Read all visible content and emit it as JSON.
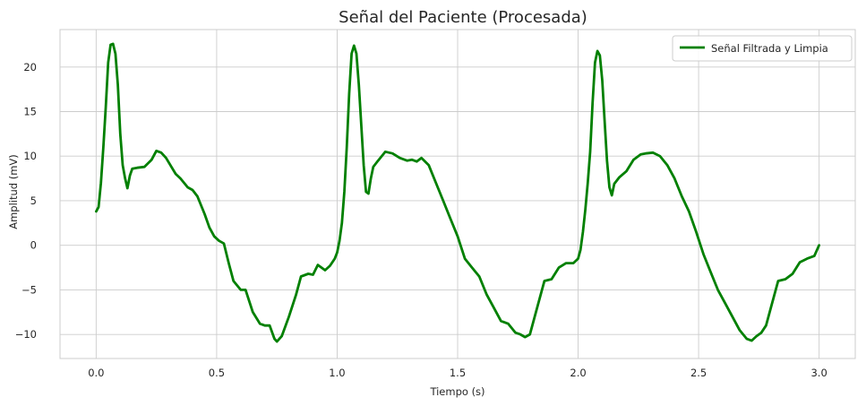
{
  "chart_data": {
    "type": "line",
    "title": "Señal del Paciente (Procesada)",
    "xlabel": "Tiempo (s)",
    "ylabel": "Amplitud (mV)",
    "xlim": [
      -0.15,
      3.15
    ],
    "ylim": [
      -12.7,
      24.2
    ],
    "xticks": [
      0.0,
      0.5,
      1.0,
      1.5,
      2.0,
      2.5,
      3.0
    ],
    "xtick_labels": [
      "0.0",
      "0.5",
      "1.0",
      "1.5",
      "2.0",
      "2.5",
      "3.0"
    ],
    "yticks": [
      -10,
      -5,
      0,
      5,
      10,
      15,
      20
    ],
    "ytick_labels": [
      "−10",
      "−5",
      "0",
      "5",
      "10",
      "15",
      "20"
    ],
    "grid": true,
    "legend_position": "top-right",
    "series": [
      {
        "name": "Señal Filtrada y Limpia",
        "color": "#008000",
        "x": [
          0.0,
          0.01,
          0.02,
          0.03,
          0.04,
          0.05,
          0.06,
          0.07,
          0.08,
          0.09,
          0.1,
          0.11,
          0.12,
          0.13,
          0.14,
          0.15,
          0.17,
          0.2,
          0.23,
          0.25,
          0.27,
          0.29,
          0.31,
          0.33,
          0.35,
          0.38,
          0.4,
          0.42,
          0.45,
          0.47,
          0.49,
          0.51,
          0.53,
          0.55,
          0.57,
          0.6,
          0.62,
          0.65,
          0.68,
          0.7,
          0.72,
          0.74,
          0.75,
          0.77,
          0.8,
          0.83,
          0.85,
          0.88,
          0.9,
          0.92,
          0.95,
          0.97,
          0.99,
          1.0,
          1.01,
          1.02,
          1.03,
          1.04,
          1.05,
          1.06,
          1.07,
          1.08,
          1.09,
          1.1,
          1.11,
          1.12,
          1.13,
          1.14,
          1.15,
          1.17,
          1.2,
          1.23,
          1.26,
          1.29,
          1.31,
          1.33,
          1.35,
          1.38,
          1.41,
          1.44,
          1.47,
          1.5,
          1.53,
          1.56,
          1.59,
          1.62,
          1.65,
          1.68,
          1.71,
          1.74,
          1.76,
          1.78,
          1.8,
          1.83,
          1.86,
          1.89,
          1.92,
          1.95,
          1.98,
          2.0,
          2.01,
          2.02,
          2.03,
          2.04,
          2.05,
          2.06,
          2.07,
          2.08,
          2.09,
          2.1,
          2.11,
          2.12,
          2.13,
          2.14,
          2.15,
          2.17,
          2.2,
          2.23,
          2.26,
          2.28,
          2.31,
          2.34,
          2.37,
          2.4,
          2.43,
          2.46,
          2.49,
          2.52,
          2.55,
          2.58,
          2.61,
          2.64,
          2.67,
          2.7,
          2.72,
          2.74,
          2.76,
          2.78,
          2.8,
          2.83,
          2.86,
          2.89,
          2.92,
          2.95,
          2.98,
          3.0
        ],
        "values": [
          3.8,
          4.3,
          7.0,
          11.0,
          15.5,
          20.5,
          22.5,
          22.6,
          21.5,
          18.0,
          12.5,
          9.0,
          7.5,
          6.4,
          7.8,
          8.6,
          8.7,
          8.8,
          9.6,
          10.6,
          10.4,
          9.8,
          8.9,
          8.0,
          7.5,
          6.5,
          6.2,
          5.5,
          3.5,
          2.0,
          1.0,
          0.5,
          0.2,
          -2.0,
          -4.0,
          -5.0,
          -5.0,
          -7.5,
          -8.8,
          -9.0,
          -9.0,
          -10.5,
          -10.8,
          -10.2,
          -8.0,
          -5.5,
          -3.5,
          -3.2,
          -3.3,
          -2.2,
          -2.8,
          -2.3,
          -1.5,
          -0.8,
          0.5,
          2.5,
          6.0,
          11.0,
          17.0,
          21.5,
          22.4,
          21.5,
          18.0,
          13.5,
          9.0,
          6.0,
          5.8,
          7.5,
          8.8,
          9.5,
          10.5,
          10.3,
          9.8,
          9.5,
          9.6,
          9.4,
          9.8,
          9.0,
          7.0,
          5.0,
          3.0,
          1.0,
          -1.5,
          -2.5,
          -3.5,
          -5.5,
          -7.0,
          -8.5,
          -8.8,
          -9.8,
          -10.0,
          -10.3,
          -10.0,
          -7.0,
          -4.0,
          -3.8,
          -2.5,
          -2.0,
          -2.0,
          -1.5,
          -0.5,
          1.5,
          4.0,
          7.0,
          10.5,
          16.0,
          20.5,
          21.8,
          21.3,
          18.5,
          14.0,
          9.5,
          6.5,
          5.6,
          6.9,
          7.6,
          8.3,
          9.6,
          10.2,
          10.3,
          10.4,
          10.0,
          9.0,
          7.5,
          5.5,
          3.8,
          1.5,
          -1.0,
          -3.0,
          -5.0,
          -6.5,
          -8.0,
          -9.5,
          -10.5,
          -10.7,
          -10.2,
          -9.8,
          -9.0,
          -7.0,
          -4.0,
          -3.8,
          -3.2,
          -1.9,
          -1.5,
          -1.2,
          0.0
        ]
      }
    ]
  }
}
